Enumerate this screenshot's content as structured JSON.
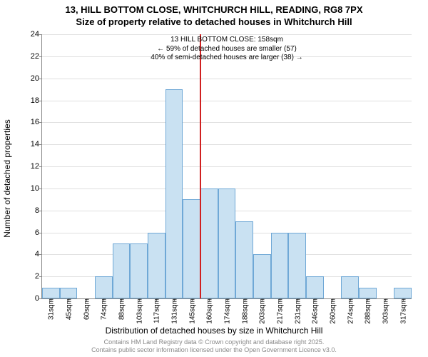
{
  "title": {
    "line1": "13, HILL BOTTOM CLOSE, WHITCHURCH HILL, READING, RG8 7PX",
    "line2": "Size of property relative to detached houses in Whitchurch Hill",
    "fontsize": 13,
    "fontweight": "bold",
    "color": "#000000"
  },
  "chart": {
    "type": "histogram",
    "background_color": "#ffffff",
    "grid_color": "#e0e0e0",
    "axis_color": "#888888",
    "bar_fill": "#c9e1f2",
    "bar_border": "#6fa8d6",
    "bar_border_width": 1,
    "ylabel": "Number of detached properties",
    "xlabel": "Distribution of detached houses by size in Whitchurch Hill",
    "label_fontsize": 12,
    "tick_fontsize": 11,
    "xtick_fontsize": 10,
    "ylim": [
      0,
      24
    ],
    "ytick_step": 2,
    "yticks": [
      0,
      2,
      4,
      6,
      8,
      10,
      12,
      14,
      16,
      18,
      20,
      22,
      24
    ],
    "x_categories": [
      "31sqm",
      "45sqm",
      "60sqm",
      "74sqm",
      "88sqm",
      "103sqm",
      "117sqm",
      "131sqm",
      "145sqm",
      "160sqm",
      "174sqm",
      "188sqm",
      "203sqm",
      "217sqm",
      "231sqm",
      "246sqm",
      "260sqm",
      "274sqm",
      "288sqm",
      "303sqm",
      "317sqm"
    ],
    "values": [
      1,
      1,
      0,
      2,
      5,
      5,
      6,
      19,
      9,
      10,
      10,
      7,
      4,
      6,
      6,
      2,
      0,
      2,
      1,
      0,
      1
    ],
    "bar_width_ratio": 1.0,
    "marker": {
      "color": "#d02020",
      "position_index": 9,
      "lines": [
        "13 HILL BOTTOM CLOSE: 158sqm",
        "← 59% of detached houses are smaller (57)",
        "40% of semi-detached houses are larger (38) →"
      ],
      "label_fontsize": 10
    }
  },
  "footer": {
    "line1": "Contains HM Land Registry data © Crown copyright and database right 2025.",
    "line2": "Contains public sector information licensed under the Open Government Licence v3.0.",
    "fontsize": 9,
    "color": "#888888"
  }
}
